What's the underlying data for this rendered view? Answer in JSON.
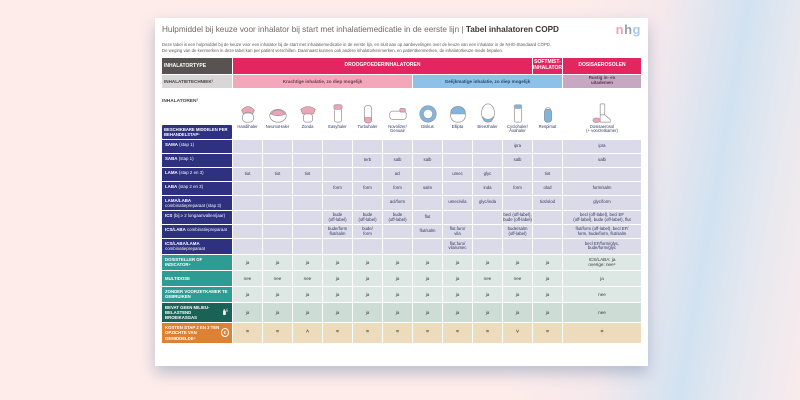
{
  "page": {
    "title_regular": "Hulpmiddel bij keuze voor inhalator bij start met inhalatiemedicatie in de eerste lijn | ",
    "title_bold": "Tabel inhalatoren COPD",
    "logo_letters": [
      "n",
      "h",
      "g"
    ],
    "intro_line1": "Deze tabel is een hulpmiddel bij de keuze voor een inhalator bij de start met inhalatiemedicatie in de eerste lijn, en sluit aan op aanbevelingen over de keuze van een inhalator in de NHG-Standaard COPD.",
    "intro_line2": "De weging van de kenmerken in deze tabel kan per patiënt verschillen. Daarnaast kunnen ook andere inhalatorkenmerken, en patiëntkenmerken, de inhalatorkeuze mede bepalen."
  },
  "header": {
    "inhalatortype_label": "INHALATORTYPE",
    "groups": [
      {
        "label": "DROOGPOEDERINHALATOREN",
        "span": 10
      },
      {
        "label": "SOFTMIST-\nINHALATOR",
        "span": 1
      },
      {
        "label": "DOSISAEROSOLEN",
        "span": 1
      }
    ],
    "techniek_label": "INHALATIETECHNIEK¹",
    "technieken": [
      {
        "label": "Krachtige inhalatie, zo diep mogelijk",
        "span": 6
      },
      {
        "label": "Gelijkmatige inhalatie, zo diep mogelijk",
        "span": 5
      },
      {
        "label": "Rustig in- en\nuitademen",
        "span": 1
      }
    ],
    "inhalatoren_label": "INHALATOREN²",
    "beschikbare_label": "BESCHIKBARE MIDDELEN PER BEHANDELSTAP³"
  },
  "devices": [
    {
      "name": "Handihaler",
      "icon": "handihaler-inhaler-icon"
    },
    {
      "name": "NeumoHaler",
      "icon": "neumohaler-inhaler-icon"
    },
    {
      "name": "Zonda",
      "icon": "zonda-inhaler-icon"
    },
    {
      "name": "Easyhaler",
      "icon": "easyhaler-inhaler-icon"
    },
    {
      "name": "Turbuhaler",
      "icon": "turbuhaler-inhaler-icon"
    },
    {
      "name": "Novolizer/\nGenuair",
      "icon": "novolizer-genuair-inhaler-icon"
    },
    {
      "name": "Diskus",
      "icon": "diskus-inhaler-icon"
    },
    {
      "name": "Ellipta",
      "icon": "ellipta-inhaler-icon"
    },
    {
      "name": "Breezhaler",
      "icon": "breezhaler-inhaler-icon"
    },
    {
      "name": "Cyclohaler/\nAxahaler",
      "icon": "cyclohaler-axahaler-inhaler-icon"
    },
    {
      "name": "Respimat",
      "icon": "respimat-inhaler-icon"
    },
    {
      "name": "Dosisaerosol\n(+ voorzetkamer)",
      "icon": "dosisaerosol-inhaler-icon"
    }
  ],
  "med_rows": [
    {
      "label": "SAMA",
      "sublabel": "(stap 1)",
      "cells": [
        "",
        "",
        "",
        "",
        "",
        "",
        "",
        "",
        "",
        "ipra",
        "",
        "ipra"
      ]
    },
    {
      "label": "SABA",
      "sublabel": "(stap 1)",
      "cells": [
        "",
        "",
        "",
        "",
        "terb",
        "salb",
        "salb",
        "",
        "",
        "salb",
        "",
        "salb"
      ]
    },
    {
      "label": "LAMA",
      "sublabel": "(stap 2 en 3)",
      "cells": [
        "tiot",
        "tiot",
        "tiot",
        "",
        "",
        "acl",
        "",
        "umec",
        "glyc",
        "",
        "tiot",
        ""
      ]
    },
    {
      "label": "LABA",
      "sublabel": "(stap 2 en 3)",
      "cells": [
        "",
        "",
        "",
        "form",
        "form",
        "form",
        "salm",
        "",
        "inda",
        "form",
        "olod",
        "form/salm"
      ]
    },
    {
      "label": "LAMA/LABA",
      "sublabel": "combinatiepreparaat (stap 3)",
      "cells": [
        "",
        "",
        "",
        "",
        "",
        "acl/form",
        "",
        "umec/vila",
        "glyc/inda",
        "",
        "tiot/olod",
        "glyc/form"
      ]
    },
    {
      "label": "ICS",
      "sublabel": "(bij ≥ 2 longaanvallen/jaar)",
      "cells": [
        "",
        "",
        "",
        "bude\n(off-label)",
        "bude\n(off-label)",
        "bude\n(off-label)",
        "flut",
        "",
        "",
        "becl (off-label),\nbude (off-label)",
        "",
        "becl (off-label), becl EF\n(off-label), bude (off-label), flut"
      ]
    },
    {
      "label": "ICS/LABA",
      "sublabel": "combinatiepreparaat",
      "cells": [
        "",
        "",
        "",
        "bude/form\nflut/salm",
        "bude/\nform",
        "",
        "flut/salm",
        "flut.furo/\nvila",
        "",
        "bude/salm\n(off-label)",
        "",
        "flut/form (off-label), becl EF/\nform, bude/form, flut/salm"
      ]
    },
    {
      "label": "ICS/LABA/LAMA",
      "sublabel": "combinatiepreparaat",
      "cells": [
        "",
        "",
        "",
        "",
        "",
        "",
        "",
        "flut.furo/\nvila/umec",
        "",
        "",
        "",
        "becl EF/form/glyc,\nbude/form/glyc"
      ]
    }
  ],
  "attr_rows": [
    {
      "label": "DOSISTELLER OF INDICATOR⁴",
      "style": "teal",
      "icon": "",
      "cells": [
        "ja",
        "ja",
        "ja",
        "ja",
        "ja",
        "ja",
        "ja",
        "ja",
        "ja",
        "ja",
        "ja",
        "ICS/LABA: ja\noverige: nee⁴"
      ]
    },
    {
      "label": "MULTIDOSE",
      "style": "teal",
      "icon": "",
      "cells": [
        "nee",
        "nee",
        "nee",
        "ja",
        "ja",
        "ja",
        "ja",
        "ja",
        "nee",
        "nee",
        "ja",
        "ja"
      ]
    },
    {
      "label": "ZONDER VOORZETKAMER TE GEBRUIKEN",
      "style": "teal",
      "icon": "",
      "cells": [
        "ja",
        "ja",
        "ja",
        "ja",
        "ja",
        "ja",
        "ja",
        "ja",
        "ja",
        "ja",
        "ja",
        "nee"
      ]
    },
    {
      "label": "BEVAT GEEN MILIEU-\nBELASTEND BROEIKASGAS",
      "style": "green",
      "icon": "eco-spray-icon",
      "cells": [
        "ja",
        "ja",
        "ja",
        "ja",
        "ja",
        "ja",
        "ja",
        "ja",
        "ja",
        "ja",
        "ja",
        "nee"
      ]
    },
    {
      "label": "KOSTEN STAP 2 EN 3 TEN\nOPZICHTE VAN GEMIDDELDE⁵",
      "style": "orange",
      "icon": "euro-coin-icon",
      "cells": [
        "=",
        "=",
        "˄",
        "=",
        "=",
        "=",
        "=",
        "=",
        "=",
        "˅",
        "=",
        "="
      ]
    }
  ],
  "colors": {
    "crimson": "#e32560",
    "pink_band": "#f2a7ba",
    "blue_band": "#8ec1e9",
    "mauve_band": "#c8a7c2",
    "navy": "#2d3180",
    "teal": "#2e9c92",
    "dark_green": "#1a6156",
    "orange": "#df8133",
    "cell_lavender": "#dbdae8",
    "cell_teal": "#dde7e4",
    "cell_green": "#cedcd6",
    "cell_tan": "#eddcbc",
    "logo_pink": "#f0a3c0",
    "logo_gray": "#93a0ad",
    "logo_blue": "#a9cbe6"
  }
}
